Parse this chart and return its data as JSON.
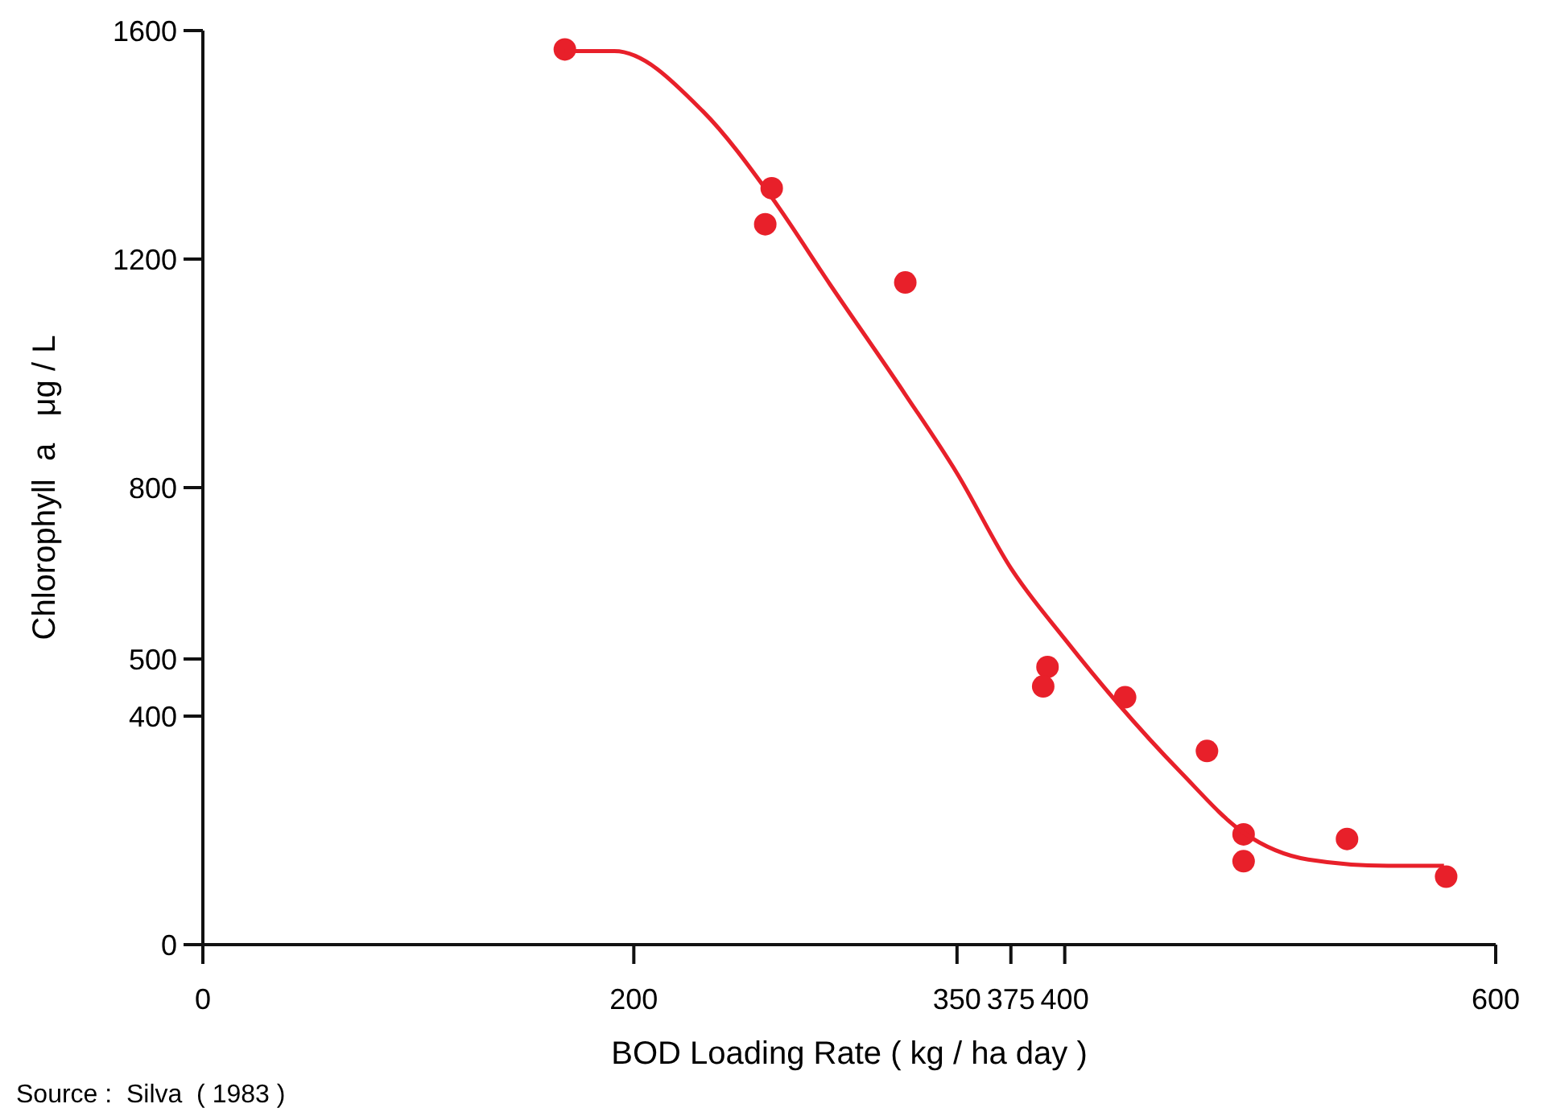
{
  "chart_data": {
    "type": "scatter",
    "xlabel": "BOD  Loading Rate  ( kg / ha day )",
    "ylabel": "Chlorophyll  a   μg / L",
    "xlim": [
      0,
      600
    ],
    "ylim": [
      0,
      1600
    ],
    "xticks": [
      0,
      200,
      350,
      375,
      400,
      600
    ],
    "yticks": [
      0,
      400,
      500,
      800,
      1200,
      1600
    ],
    "marker": "circle",
    "grid": false,
    "series": [
      {
        "color": "#e8202a",
        "x": [
          168,
          264,
          261,
          326,
          392,
          390,
          428,
          466,
          483,
          483,
          531,
          577
        ],
        "values": [
          1567,
          1324,
          1261,
          1159,
          486,
          452,
          433,
          339,
          193,
          146,
          185,
          119
        ]
      },
      {
        "type": "line",
        "color": "#e8202a",
        "marker": "none",
        "x": [
          168,
          191,
          232,
          264,
          291,
          326,
          350,
          375,
          400,
          424,
          454,
          483,
          513,
          550,
          576
        ],
        "values": [
          1564,
          1564,
          1459,
          1308,
          1156,
          963,
          825,
          659,
          535,
          425,
          301,
          196,
          149,
          138,
          138
        ]
      }
    ],
    "annotations": [
      "Source :  Silva  ( 1983 )"
    ]
  }
}
